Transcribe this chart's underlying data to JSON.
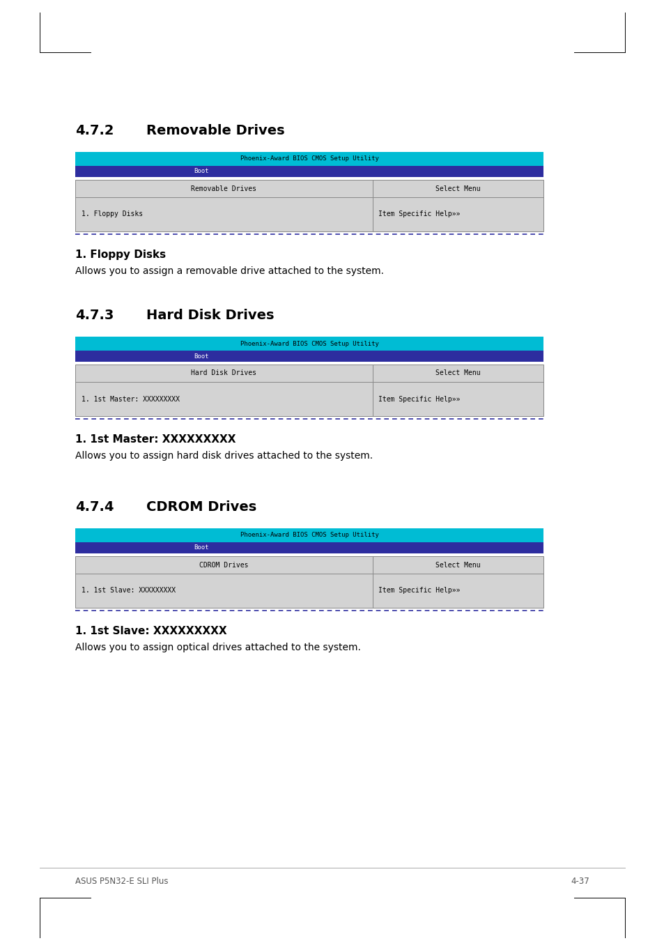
{
  "page_bg": "#ffffff",
  "header_bar_color": "#00bcd4",
  "subheader_bar_color": "#2d2d9f",
  "table_bg": "#d3d3d3",
  "table_border": "#888888",
  "dashed_border": "#2d2d9f",
  "section1": {
    "number": "4.7.2",
    "title": "Removable Drives",
    "bios_header": "Phoenix-Award BIOS CMOS Setup Utility",
    "bios_subheader": "Boot",
    "col1_header": "Removable Drives",
    "col2_header": "Select Menu",
    "row1_col1": "1. Floppy Disks",
    "row1_col2": "Item Specific Help»»",
    "subsection_title": "1. Floppy Disks",
    "subsection_body": "Allows you to assign a removable drive attached to the system."
  },
  "section2": {
    "number": "4.7.3",
    "title": "Hard Disk Drives",
    "bios_header": "Phoenix-Award BIOS CMOS Setup Utility",
    "bios_subheader": "Boot",
    "col1_header": "Hard Disk Drives",
    "col2_header": "Select Menu",
    "row1_col1": "1. 1st Master: XXXXXXXXX",
    "row1_col2": "Item Specific Help»»",
    "subsection_title": "1. 1st Master: XXXXXXXXX",
    "subsection_body": "Allows you to assign hard disk drives attached to the system."
  },
  "section3": {
    "number": "4.7.4",
    "title": "CDROM Drives",
    "bios_header": "Phoenix-Award BIOS CMOS Setup Utility",
    "bios_subheader": "Boot",
    "col1_header": "CDROM Drives",
    "col2_header": "Select Menu",
    "row1_col1": "1. 1st Slave: XXXXXXXXX",
    "row1_col2": "Item Specific Help»»",
    "subsection_title": "1. 1st Slave: XXXXXXXXX",
    "subsection_body": "Allows you to assign optical drives attached to the system."
  },
  "footer_left": "ASUS P5N32-E SLI Plus",
  "footer_right": "4-37"
}
